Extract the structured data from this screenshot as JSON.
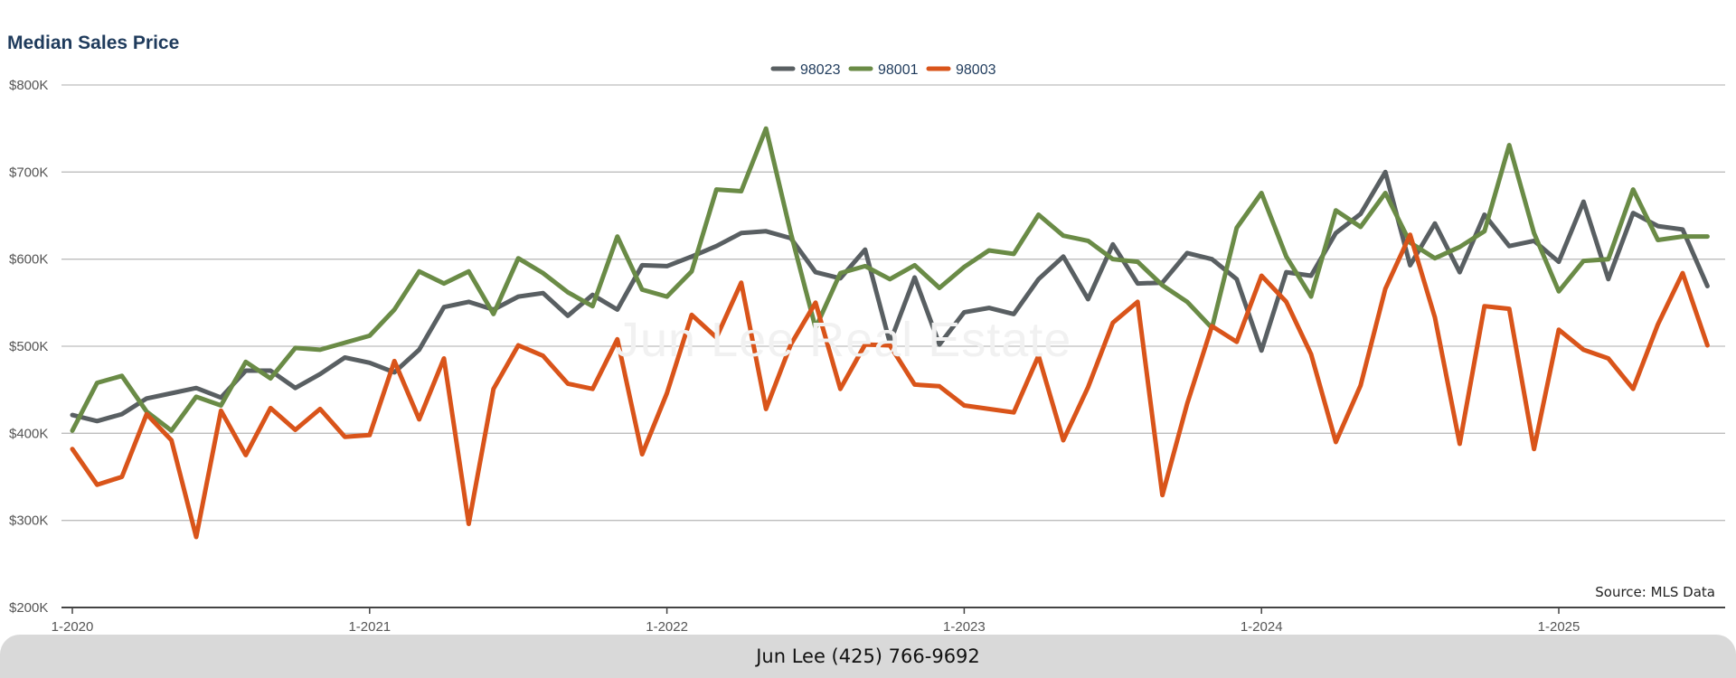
{
  "chart_data": {
    "type": "line",
    "title": "Median Sales Price",
    "source": "Source: MLS Data",
    "watermark": "Jun Lee Real Estate",
    "footer": "Jun Lee (425) 766-9692",
    "ylim": [
      200000,
      800000
    ],
    "yticks": [
      {
        "value": 200000,
        "label": "$200K"
      },
      {
        "value": 300000,
        "label": "$300K"
      },
      {
        "value": 400000,
        "label": "$400K"
      },
      {
        "value": 500000,
        "label": "$500K"
      },
      {
        "value": 600000,
        "label": "$600K"
      },
      {
        "value": 700000,
        "label": "$700K"
      },
      {
        "value": 800000,
        "label": "$800K"
      }
    ],
    "xticks": [
      "1-2020",
      "1-2021",
      "1-2022",
      "1-2023",
      "1-2024",
      "1-2025"
    ],
    "grid": true,
    "legend_position": "top-center",
    "x": [
      "1-2020",
      "2-2020",
      "3-2020",
      "4-2020",
      "5-2020",
      "6-2020",
      "7-2020",
      "8-2020",
      "9-2020",
      "10-2020",
      "11-2020",
      "12-2020",
      "1-2021",
      "2-2021",
      "3-2021",
      "4-2021",
      "5-2021",
      "6-2021",
      "7-2021",
      "8-2021",
      "9-2021",
      "10-2021",
      "11-2021",
      "12-2021",
      "1-2022",
      "2-2022",
      "3-2022",
      "4-2022",
      "5-2022",
      "6-2022",
      "7-2022",
      "8-2022",
      "9-2022",
      "10-2022",
      "11-2022",
      "12-2022",
      "1-2023",
      "2-2023",
      "3-2023",
      "4-2023",
      "5-2023",
      "6-2023",
      "7-2023",
      "8-2023",
      "9-2023",
      "10-2023",
      "11-2023",
      "12-2023",
      "1-2024",
      "2-2024",
      "3-2024",
      "4-2024",
      "5-2024",
      "6-2024",
      "7-2024",
      "8-2024",
      "9-2024",
      "10-2024",
      "11-2024",
      "12-2024",
      "1-2025",
      "2-2025",
      "3-2025",
      "4-2025",
      "5-2025",
      "6-2025",
      "7-2025"
    ],
    "series": [
      {
        "name": "98023",
        "color": "#595f62",
        "values": [
          421000,
          414000,
          422000,
          440000,
          446000,
          452000,
          441000,
          472000,
          472000,
          452000,
          468000,
          487000,
          481000,
          470000,
          496000,
          545000,
          551000,
          542000,
          557000,
          561000,
          535000,
          559000,
          542000,
          593000,
          592000,
          603000,
          615000,
          630000,
          632000,
          624000,
          585000,
          578000,
          611000,
          504000,
          579000,
          502000,
          539000,
          544000,
          537000,
          577000,
          603000,
          554000,
          617000,
          572000,
          573000,
          607000,
          600000,
          577000,
          495000,
          585000,
          581000,
          630000,
          652000,
          700000,
          593000,
          641000,
          585000,
          651000,
          615000,
          621000,
          597000,
          666000,
          577000,
          653000,
          638000,
          634000,
          569000
        ]
      },
      {
        "name": "98001",
        "color": "#6a8b46",
        "values": [
          403000,
          458000,
          466000,
          425000,
          403000,
          442000,
          432000,
          482000,
          463000,
          498000,
          496000,
          504000,
          512000,
          542000,
          586000,
          572000,
          586000,
          537000,
          601000,
          584000,
          562000,
          546000,
          626000,
          565000,
          557000,
          586000,
          680000,
          678000,
          750000,
          630000,
          521000,
          584000,
          592000,
          577000,
          593000,
          567000,
          591000,
          610000,
          606000,
          651000,
          627000,
          621000,
          600000,
          597000,
          570000,
          551000,
          521000,
          636000,
          676000,
          603000,
          557000,
          656000,
          637000,
          676000,
          619000,
          601000,
          614000,
          632000,
          731000,
          630000,
          563000,
          598000,
          600000,
          680000,
          622000,
          626000,
          626000
        ]
      },
      {
        "name": "98003",
        "color": "#d9541a",
        "values": [
          382000,
          341000,
          350000,
          422000,
          392000,
          281000,
          426000,
          375000,
          429000,
          404000,
          428000,
          396000,
          398000,
          483000,
          416000,
          486000,
          296000,
          451000,
          501000,
          489000,
          457000,
          451000,
          508000,
          376000,
          446000,
          536000,
          510000,
          573000,
          428000,
          502000,
          550000,
          451000,
          502000,
          501000,
          456000,
          454000,
          432000,
          428000,
          424000,
          489000,
          392000,
          453000,
          527000,
          551000,
          329000,
          434000,
          523000,
          505000,
          581000,
          551000,
          491000,
          390000,
          455000,
          566000,
          628000,
          533000,
          388000,
          546000,
          543000,
          382000,
          519000,
          496000,
          486000,
          451000,
          525000,
          584000,
          501000
        ]
      }
    ]
  }
}
